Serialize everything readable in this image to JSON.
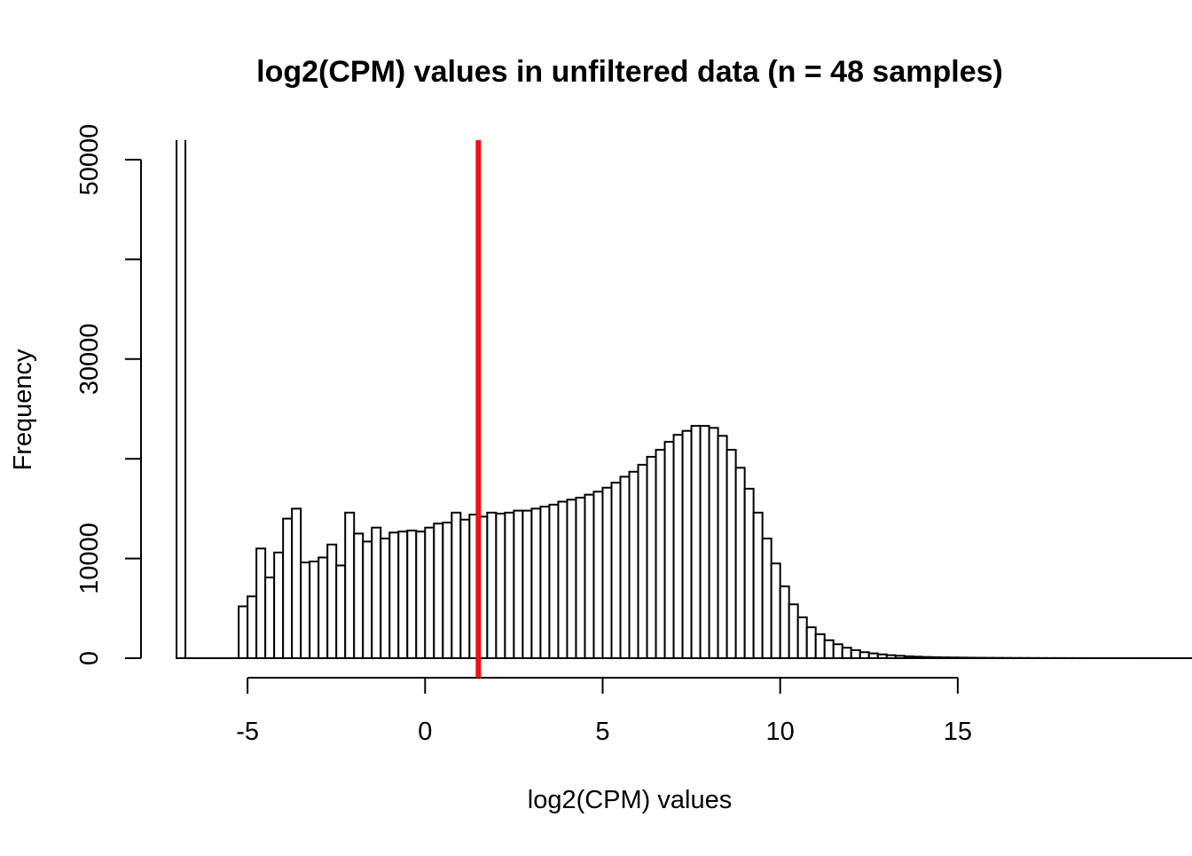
{
  "chart_data": {
    "type": "bar",
    "title": "log2(CPM) values in unfiltered data (n = 48 samples)",
    "xlabel": "log2(CPM) values",
    "ylabel": "Frequency",
    "xlim": [
      -8,
      18.6
    ],
    "ylim": [
      0,
      52000
    ],
    "x_ticks": [
      -5,
      0,
      5,
      10,
      15
    ],
    "y_ticks": [
      0,
      10000,
      20000,
      30000,
      40000,
      50000
    ],
    "y_tick_labels": [
      "0",
      "10000",
      "",
      "30000",
      "",
      "50000"
    ],
    "grid": false,
    "bin_width": 0.25,
    "spike": {
      "x0": -7,
      "x1": -6.75,
      "value": 60000
    },
    "threshold": {
      "x": 1.5,
      "color": "#ee1111"
    },
    "bin_start": -5.25,
    "values": [
      5200,
      6200,
      11000,
      8100,
      10600,
      14000,
      15000,
      9600,
      9700,
      10100,
      11400,
      9300,
      14600,
      12500,
      11700,
      13100,
      12000,
      12600,
      12700,
      12800,
      12700,
      13100,
      13500,
      13600,
      14600,
      13900,
      14400,
      14200,
      14600,
      14500,
      14600,
      14800,
      14800,
      15000,
      15200,
      15400,
      15700,
      15900,
      16100,
      16400,
      16700,
      17100,
      17600,
      18200,
      18700,
      19400,
      20200,
      20900,
      21700,
      22400,
      22800,
      23300,
      23300,
      23100,
      22300,
      20900,
      19100,
      17000,
      14600,
      12000,
      9500,
      7200,
      5400,
      4100,
      3100,
      2400,
      1800,
      1400,
      1050,
      800,
      600,
      480,
      380,
      300,
      240,
      190,
      150,
      120,
      100,
      80,
      70,
      60,
      50,
      42,
      36,
      30,
      26,
      22,
      19,
      16,
      14,
      12,
      10,
      9,
      8,
      7,
      6,
      5,
      5,
      4,
      4,
      3,
      3,
      3,
      2,
      2,
      2,
      2,
      1,
      1,
      1,
      1,
      1,
      1,
      1,
      1,
      1,
      1,
      1,
      1,
      1,
      1,
      1,
      1,
      1
    ]
  }
}
